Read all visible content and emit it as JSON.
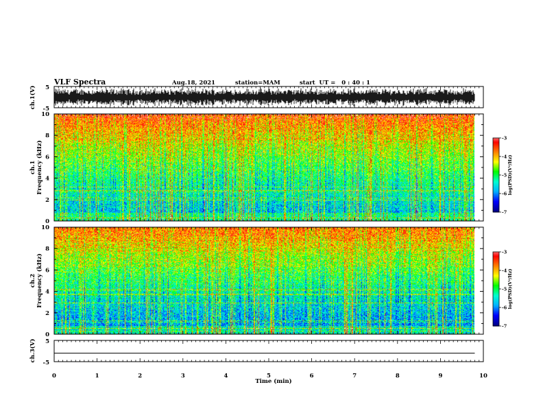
{
  "header": {
    "title": "VLF Spectra",
    "date": "Aug.18, 2021",
    "station": "station=MAM",
    "start": "start  UT =   0 : 40 : 1"
  },
  "colors": {
    "spectrogram_palette": [
      "#000088",
      "#0000ff",
      "#00b0ff",
      "#00ffd0",
      "#00ff00",
      "#ffff00",
      "#ff8000",
      "#ff0000",
      "#ffffff"
    ],
    "waveform": "#000000",
    "frame": "#000000"
  },
  "chart_data": [
    {
      "type": "line",
      "name": "ch1-waveform",
      "ylabel": "ch.1(V)",
      "ylim": [
        -5,
        5
      ],
      "yticks": [
        "5",
        "-5"
      ],
      "xlim": [
        0,
        10
      ],
      "description_values": {
        "amplitude_max": 4.5,
        "amplitude_min": -4.5,
        "extent_min": 9.8
      }
    },
    {
      "type": "heatmap",
      "name": "ch1-spectrogram",
      "ylabel": "ch.1\nFrequency (kHz)",
      "ylim": [
        0,
        10
      ],
      "yticks": [
        "0",
        "2",
        "4",
        "6",
        "8",
        "10"
      ],
      "xlim": [
        0,
        10
      ],
      "data_extent_min": 9.8,
      "colorbar": {
        "label": "log(PSD)(V²/Hz)",
        "range": [
          -7,
          -3
        ],
        "ticks": [
          "-3",
          "-4",
          "-5",
          "-6",
          "-7"
        ]
      }
    },
    {
      "type": "heatmap",
      "name": "ch2-spectrogram",
      "ylabel": "ch.2\nFrequency (kHz)",
      "ylim": [
        0,
        10
      ],
      "yticks": [
        "0",
        "2",
        "4",
        "6",
        "8",
        "10"
      ],
      "xlim": [
        0,
        10
      ],
      "data_extent_min": 9.8,
      "colorbar": {
        "label": "log(PSD)(V²/Hz)",
        "range": [
          -7,
          -3
        ],
        "ticks": [
          "-3",
          "-4",
          "-5",
          "-6",
          "-7"
        ]
      }
    },
    {
      "type": "line",
      "name": "ch3-waveform",
      "ylabel": "ch.3(V)",
      "ylim": [
        -5,
        5
      ],
      "yticks": [
        "5",
        "-5"
      ],
      "xlim": [
        0,
        10
      ],
      "values": {
        "x": [
          0,
          9.8
        ],
        "y": [
          -1,
          -1
        ]
      }
    }
  ],
  "xaxis": {
    "label": "Time (min)",
    "ticks": [
      "0",
      "1",
      "2",
      "3",
      "4",
      "5",
      "6",
      "7",
      "8",
      "9",
      "10"
    ]
  }
}
